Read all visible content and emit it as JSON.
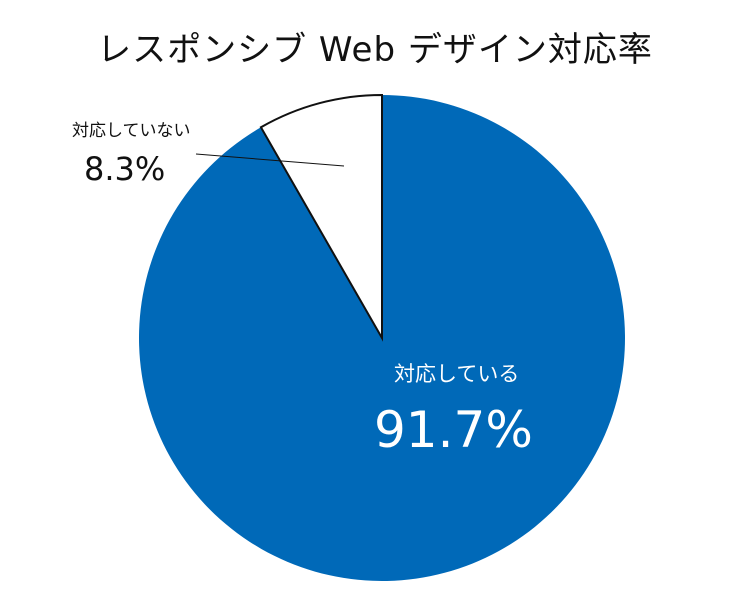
{
  "chart_data": {
    "type": "pie",
    "title": "レスポンシブ Web デザイン対応率",
    "slices": [
      {
        "label": "対応している",
        "value": 91.7,
        "display": "91.7%",
        "color": "#0069b8"
      },
      {
        "label": "対応していない",
        "value": 8.3,
        "display": "8.3%",
        "color": "#ffffff"
      }
    ],
    "start": "12 o'clock",
    "direction": "clockwise"
  }
}
